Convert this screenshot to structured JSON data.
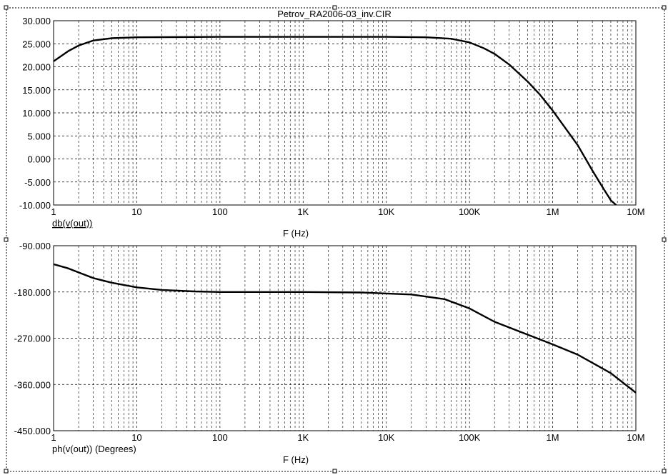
{
  "title": "Petrov_RA2006-03_inv.CIR",
  "chart_data": [
    {
      "type": "line",
      "xscale": "log",
      "xlim": [
        1,
        10000000
      ],
      "ylim": [
        -10,
        30
      ],
      "xticks": [
        {
          "value": 1,
          "label": "1"
        },
        {
          "value": 10,
          "label": "10"
        },
        {
          "value": 100,
          "label": "100"
        },
        {
          "value": 1000,
          "label": "1K"
        },
        {
          "value": 10000,
          "label": "10K"
        },
        {
          "value": 100000,
          "label": "100K"
        },
        {
          "value": 1000000,
          "label": "1M"
        },
        {
          "value": 10000000,
          "label": "10M"
        }
      ],
      "yticks": [
        {
          "value": 30,
          "label": "30.000"
        },
        {
          "value": 25,
          "label": "25.000"
        },
        {
          "value": 20,
          "label": "20.000"
        },
        {
          "value": 15,
          "label": "15.000"
        },
        {
          "value": 10,
          "label": "10.000"
        },
        {
          "value": 5,
          "label": "5.000"
        },
        {
          "value": 0,
          "label": "0.000"
        },
        {
          "value": -5,
          "label": "-5.000"
        },
        {
          "value": -10,
          "label": "-10.000"
        }
      ],
      "xlabel": "F (Hz)",
      "grid": true,
      "series": [
        {
          "name": "db(v(out))",
          "x": [
            1,
            1.5,
            2,
            3,
            5,
            10,
            100,
            1000,
            10000,
            30000,
            60000,
            100000,
            150000,
            200000,
            300000,
            500000,
            700000,
            1000000,
            2000000,
            3000000,
            4000000,
            5000000,
            5800000
          ],
          "y": [
            21.2,
            23.4,
            24.6,
            25.7,
            26.2,
            26.4,
            26.5,
            26.5,
            26.5,
            26.4,
            26.1,
            25.3,
            24.0,
            22.8,
            20.5,
            16.8,
            14.0,
            10.5,
            3.0,
            -2.5,
            -6.2,
            -9.0,
            -10.0
          ]
        }
      ]
    },
    {
      "type": "line",
      "xscale": "log",
      "xlim": [
        1,
        10000000
      ],
      "ylim": [
        -450,
        -90
      ],
      "xticks": [
        {
          "value": 1,
          "label": "1"
        },
        {
          "value": 10,
          "label": "10"
        },
        {
          "value": 100,
          "label": "100"
        },
        {
          "value": 1000,
          "label": "1K"
        },
        {
          "value": 10000,
          "label": "10K"
        },
        {
          "value": 100000,
          "label": "100K"
        },
        {
          "value": 1000000,
          "label": "1M"
        },
        {
          "value": 10000000,
          "label": "10M"
        }
      ],
      "yticks": [
        {
          "value": -90,
          "label": "-90.000"
        },
        {
          "value": -180,
          "label": "-180.000"
        },
        {
          "value": -270,
          "label": "-270.000"
        },
        {
          "value": -360,
          "label": "-360.000"
        },
        {
          "value": -450,
          "label": "-450.000"
        }
      ],
      "xlabel": "F (Hz)",
      "grid": true,
      "series": [
        {
          "name": "ph(v(out)) (Degrees)",
          "x": [
            1,
            1.5,
            2,
            3,
            5,
            10,
            20,
            50,
            100,
            1000,
            5000,
            10000,
            20000,
            50000,
            100000,
            200000,
            500000,
            1000000,
            2000000,
            5000000,
            10000000
          ],
          "y": [
            -126,
            -134,
            -142,
            -153,
            -162,
            -171,
            -176,
            -179,
            -180,
            -180,
            -181,
            -183,
            -185,
            -194,
            -212,
            -238,
            -263,
            -282,
            -302,
            -338,
            -376
          ]
        }
      ]
    }
  ]
}
